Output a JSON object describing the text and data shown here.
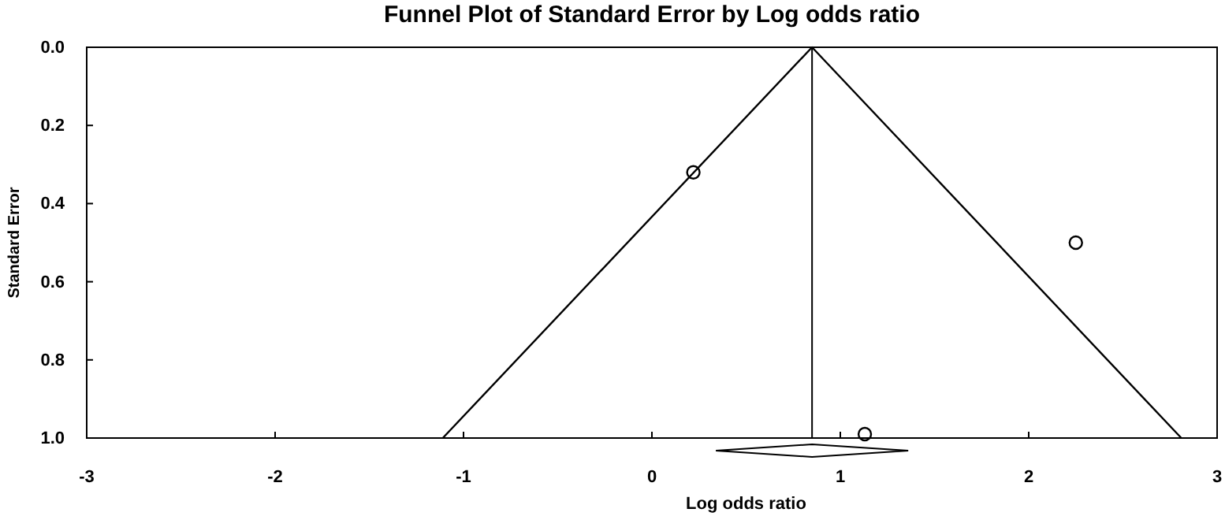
{
  "chart_data": {
    "type": "scatter",
    "title": "Funnel Plot of Standard Error by Log odds ratio",
    "xlabel": "Log odds ratio",
    "ylabel": "Standard Error",
    "xlim": [
      -3,
      3
    ],
    "xticks": [
      -3,
      -2,
      -1,
      0,
      1,
      2,
      3
    ],
    "ylim": [
      1,
      0
    ],
    "yticks": [
      {
        "value": 0,
        "label": "0.0"
      },
      0.2,
      0.4,
      0.6,
      0.8,
      {
        "value": 1,
        "label": "1.0"
      }
    ],
    "series": [
      {
        "type": "line",
        "color": "#000000",
        "x": [
          -1.11,
          0.85,
          2.81
        ],
        "values": [
          1,
          0,
          1
        ]
      },
      {
        "color": "#000000",
        "x": [
          0.22,
          2.25,
          1.13
        ],
        "values": [
          0.32,
          0.5,
          0.99
        ],
        "marker": "circle"
      }
    ],
    "ref_lines": [
      {
        "axis": "x",
        "value": 0.85,
        "color": "#000000"
      }
    ],
    "grid": false
  }
}
